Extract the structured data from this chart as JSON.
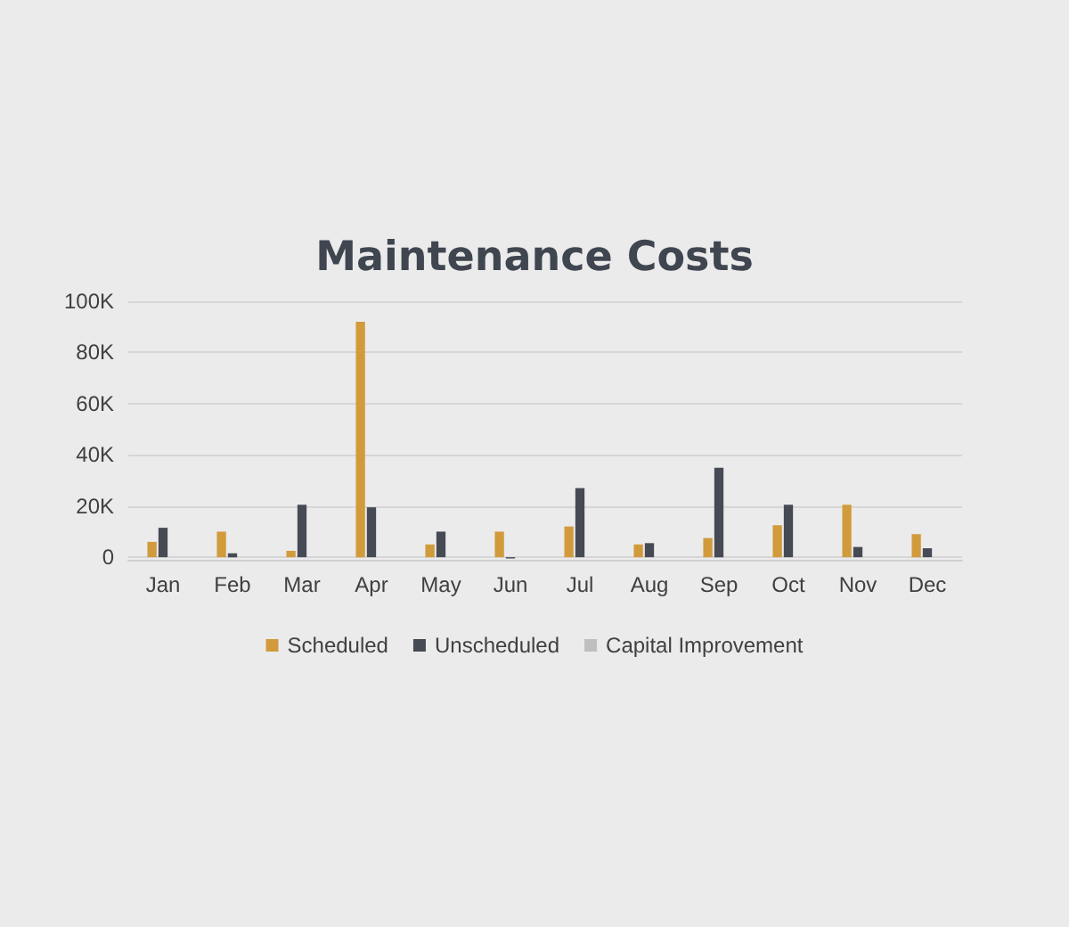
{
  "chart_data": {
    "type": "bar",
    "title": "Maintenance Costs",
    "categories": [
      "Jan",
      "Feb",
      "Mar",
      "Apr",
      "May",
      "Jun",
      "Jul",
      "Aug",
      "Sep",
      "Oct",
      "Nov",
      "Dec"
    ],
    "series": [
      {
        "name": "Scheduled",
        "color": "#d19b3c",
        "values": [
          6000,
          10000,
          2500,
          92000,
          5000,
          10000,
          12000,
          5000,
          7500,
          12500,
          20500,
          9000
        ]
      },
      {
        "name": "Unscheduled",
        "color": "#464a54",
        "values": [
          11500,
          1500,
          20500,
          19500,
          10000,
          -500,
          27000,
          5500,
          35000,
          20500,
          4000,
          3500
        ]
      },
      {
        "name": "Capital Improvement",
        "color": "#bfbfbf",
        "values": [
          null,
          null,
          null,
          null,
          null,
          null,
          null,
          null,
          null,
          null,
          null,
          null
        ]
      }
    ],
    "ylim": [
      -1000,
      100000
    ],
    "yticks": [
      {
        "value": 0,
        "label": "0"
      },
      {
        "value": 20000,
        "label": "20K"
      },
      {
        "value": 40000,
        "label": "40K"
      },
      {
        "value": 60000,
        "label": "60K"
      },
      {
        "value": 80000,
        "label": "80K"
      },
      {
        "value": 100000,
        "label": "100K"
      }
    ],
    "grid": "y",
    "legend": "bottom"
  }
}
